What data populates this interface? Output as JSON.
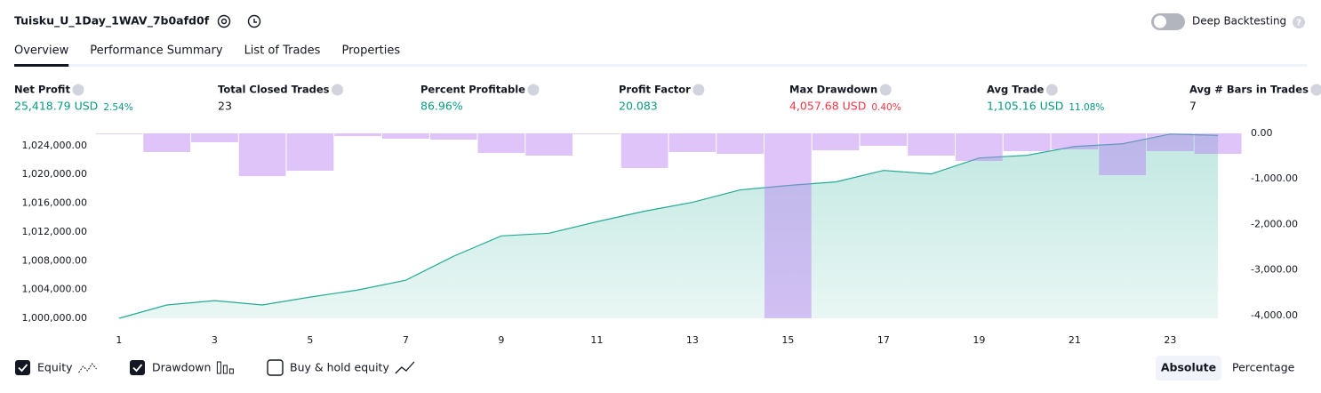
{
  "header": {
    "title": "Tuisku_U_1Day_1WAV_7b0afd0f",
    "deep_backtesting": "Deep Backtesting"
  },
  "tabs": [
    "Overview",
    "Performance Summary",
    "List of Trades",
    "Properties"
  ],
  "active_tab": 0,
  "metrics": [
    {
      "label": "Net Profit",
      "value": "25,418.79 USD",
      "pct": "2.54%",
      "color": "#089981"
    },
    {
      "label": "Total Closed Trades",
      "value": "23",
      "color": "#131722"
    },
    {
      "label": "Percent Profitable",
      "value": "86.96%",
      "color": "#089981"
    },
    {
      "label": "Profit Factor",
      "value": "20.083",
      "color": "#089981"
    },
    {
      "label": "Max Drawdown",
      "value": "4,057.68 USD",
      "pct": "0.40%",
      "color": "#f23645"
    },
    {
      "label": "Avg Trade",
      "value": "1,105.16 USD",
      "pct": "11.08%",
      "color": "#089981"
    },
    {
      "label": "Avg # Bars in Trades",
      "value": "7",
      "color": "#131722"
    }
  ],
  "chart_data": {
    "type": "combo",
    "x": [
      1,
      2,
      3,
      4,
      5,
      6,
      7,
      8,
      9,
      10,
      11,
      12,
      13,
      14,
      15,
      16,
      17,
      18,
      19,
      20,
      21,
      22,
      23,
      24
    ],
    "xlim": [
      0.5,
      24.5
    ],
    "xticks": [
      1,
      3,
      5,
      7,
      9,
      11,
      13,
      15,
      17,
      19,
      21,
      23
    ],
    "series": [
      {
        "name": "Equity",
        "type": "line",
        "color": "#22ab94",
        "checked": true,
        "values": [
          1000000,
          1001850,
          1002460,
          1001850,
          1002950,
          1003940,
          1005290,
          1008620,
          1011450,
          1011820,
          1013420,
          1014890,
          1016120,
          1017850,
          1018460,
          1018950,
          1020550,
          1020060,
          1022280,
          1022650,
          1023880,
          1024250,
          1025600,
          1025420
        ]
      },
      {
        "name": "Drawdown",
        "type": "bar",
        "axis": "y2",
        "color": "#b57cf2",
        "checked": true,
        "values": [
          -10,
          -410,
          -195,
          -937,
          -820,
          -60,
          -117,
          -137,
          -430,
          -488,
          -10,
          -761,
          -410,
          -449,
          -4057.68,
          -371,
          -273,
          -488,
          -605,
          -390,
          -351,
          -917,
          -390,
          -449
        ]
      }
    ],
    "extra_legend": {
      "name": "Buy & hold equity",
      "checked": false
    },
    "ylim": [
      1000000,
      1025700
    ],
    "yticks": [
      {
        "value": 1000000,
        "label": "1,000,000.00"
      },
      {
        "value": 1004000,
        "label": "1,004,000.00"
      },
      {
        "value": 1008000,
        "label": "1,008,000.00"
      },
      {
        "value": 1012000,
        "label": "1,012,000.00"
      },
      {
        "value": 1016000,
        "label": "1,016,000.00"
      },
      {
        "value": 1020000,
        "label": "1,020,000.00"
      },
      {
        "value": 1024000,
        "label": "1,024,000.00"
      }
    ],
    "y2lim": [
      -4060,
      0
    ],
    "y2ticks": [
      {
        "value": 0,
        "label": "0.00"
      },
      {
        "value": -1000,
        "label": "-1,000.00"
      },
      {
        "value": -2000,
        "label": "-2,000.00"
      },
      {
        "value": -3000,
        "label": "-3,000.00"
      },
      {
        "value": -4000,
        "label": "-4,000.00"
      }
    ]
  },
  "view_modes": [
    "Absolute",
    "Percentage"
  ],
  "active_view": 0
}
